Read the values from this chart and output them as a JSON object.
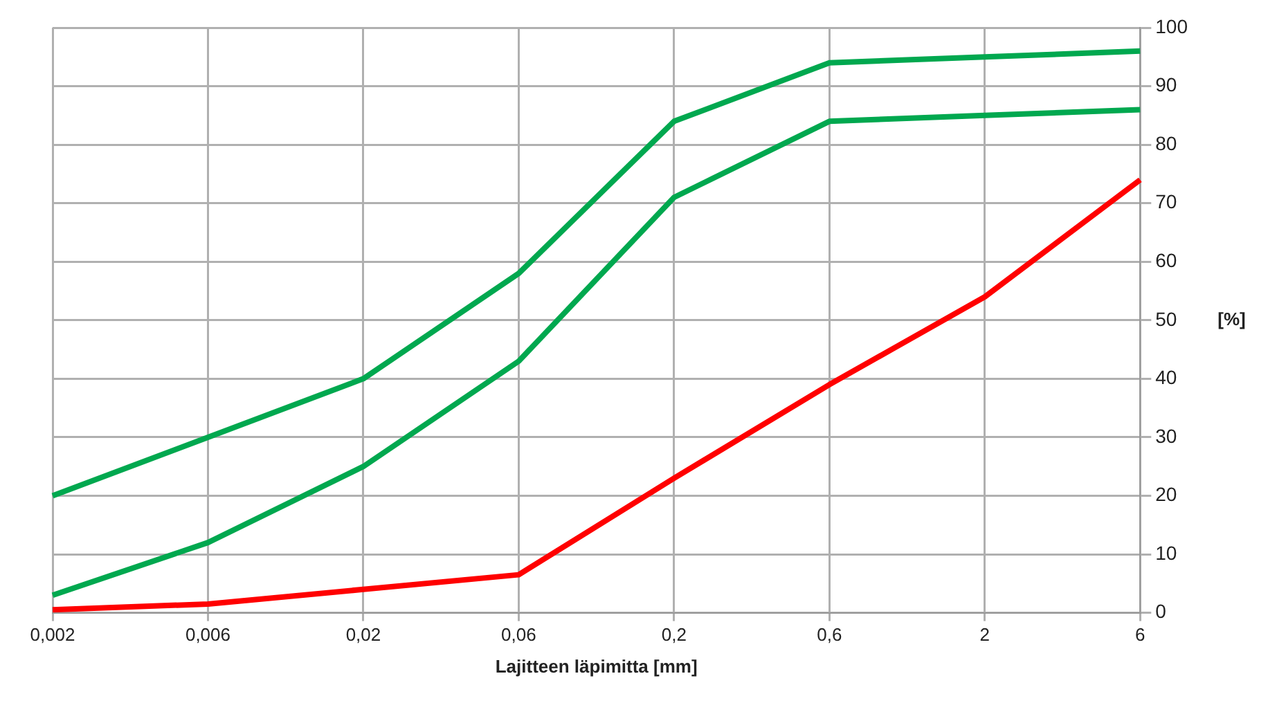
{
  "chart_data": {
    "type": "line",
    "xlabel": "Lajitteen läpimitta [mm]",
    "ylabel": "[%]",
    "categories": [
      "0,002",
      "0,006",
      "0,02",
      "0,06",
      "0,2",
      "0,6",
      "2",
      "6"
    ],
    "series": [
      {
        "color": "#00a84f",
        "values": [
          20,
          30,
          40,
          58,
          84,
          94,
          95,
          96
        ]
      },
      {
        "color": "#00a84f",
        "values": [
          3,
          12,
          25,
          43,
          71,
          84,
          85,
          86
        ]
      },
      {
        "color": "#ff0000",
        "values": [
          0.5,
          1.5,
          4,
          6.5,
          23,
          39,
          54,
          74
        ]
      }
    ],
    "ylim": [
      0,
      100
    ],
    "yticks": [
      0,
      10,
      20,
      30,
      40,
      50,
      60,
      70,
      80,
      90,
      100
    ],
    "grid": true,
    "legend": false,
    "marker": "none",
    "line_style": "solid"
  }
}
